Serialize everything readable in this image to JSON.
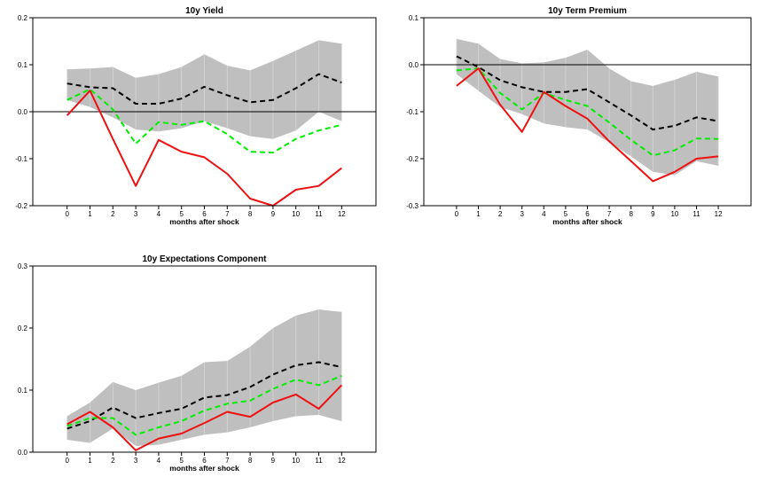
{
  "chart_data": [
    {
      "type": "line",
      "title": "10y Yield",
      "xlabel": "months after shock",
      "ylabel": "",
      "x": [
        0,
        1,
        2,
        3,
        4,
        5,
        6,
        7,
        8,
        9,
        10,
        11,
        12
      ],
      "xlim": [
        -1.5,
        13.5
      ],
      "ylim": [
        -0.2,
        0.2
      ],
      "yticks": [
        -0.2,
        -0.1,
        0.0,
        0.1,
        0.2
      ],
      "ytick_labels": [
        "-0.2",
        "-0.1",
        "0.0",
        "0.1",
        "0.2"
      ],
      "zero_line": true,
      "band": {
        "upper": [
          0.09,
          0.092,
          0.095,
          0.072,
          0.08,
          0.095,
          0.122,
          0.098,
          0.088,
          0.108,
          0.13,
          0.152,
          0.145
        ],
        "lower": [
          0.025,
          0.01,
          -0.012,
          -0.038,
          -0.042,
          -0.035,
          -0.02,
          -0.035,
          -0.052,
          -0.058,
          -0.04,
          0.0,
          -0.02
        ],
        "color": "#bfbfbf"
      },
      "series": [
        {
          "values": [
            0.06,
            0.052,
            0.05,
            0.017,
            0.017,
            0.028,
            0.053,
            0.035,
            0.02,
            0.025,
            0.05,
            0.08,
            0.062
          ],
          "color": "#000000",
          "style": "dashed"
        },
        {
          "values": [
            0.025,
            0.048,
            0.005,
            -0.068,
            -0.022,
            -0.028,
            -0.02,
            -0.048,
            -0.085,
            -0.087,
            -0.058,
            -0.04,
            -0.028
          ],
          "color": "#00ee00",
          "style": "dashed"
        },
        {
          "values": [
            -0.008,
            0.045,
            -0.058,
            -0.158,
            -0.06,
            -0.085,
            -0.097,
            -0.132,
            -0.185,
            -0.2,
            -0.166,
            -0.158,
            -0.12
          ],
          "color": "#ee1111",
          "style": "solid"
        }
      ]
    },
    {
      "type": "line",
      "title": "10y Term Premium",
      "xlabel": "months after shock",
      "ylabel": "",
      "x": [
        0,
        1,
        2,
        3,
        4,
        5,
        6,
        7,
        8,
        9,
        10,
        11,
        12
      ],
      "xlim": [
        -1.5,
        13.5
      ],
      "ylim": [
        -0.3,
        0.1
      ],
      "yticks": [
        -0.3,
        -0.2,
        -0.1,
        0.0,
        0.1
      ],
      "ytick_labels": [
        "-0.3",
        "-0.2",
        "-0.1",
        "0.0",
        "0.1"
      ],
      "zero_line": true,
      "band": {
        "upper": [
          0.055,
          0.045,
          0.012,
          0.003,
          0.005,
          0.015,
          0.032,
          -0.008,
          -0.035,
          -0.045,
          -0.032,
          -0.015,
          -0.025
        ],
        "lower": [
          -0.02,
          -0.055,
          -0.09,
          -0.105,
          -0.125,
          -0.133,
          -0.138,
          -0.165,
          -0.195,
          -0.228,
          -0.235,
          -0.205,
          -0.215
        ],
        "color": "#bfbfbf"
      },
      "series": [
        {
          "values": [
            0.018,
            -0.005,
            -0.033,
            -0.048,
            -0.058,
            -0.058,
            -0.052,
            -0.08,
            -0.108,
            -0.138,
            -0.13,
            -0.112,
            -0.12
          ],
          "color": "#000000",
          "style": "dashed"
        },
        {
          "values": [
            -0.012,
            -0.008,
            -0.06,
            -0.095,
            -0.06,
            -0.075,
            -0.088,
            -0.123,
            -0.16,
            -0.193,
            -0.182,
            -0.157,
            -0.158
          ],
          "color": "#00ee00",
          "style": "dashed"
        },
        {
          "values": [
            -0.045,
            -0.008,
            -0.085,
            -0.143,
            -0.058,
            -0.088,
            -0.115,
            -0.163,
            -0.205,
            -0.248,
            -0.228,
            -0.2,
            -0.195
          ],
          "color": "#ee1111",
          "style": "solid"
        }
      ]
    },
    {
      "type": "line",
      "title": "10y Expectations Component",
      "xlabel": "months after shock",
      "ylabel": "",
      "x": [
        0,
        1,
        2,
        3,
        4,
        5,
        6,
        7,
        8,
        9,
        10,
        11,
        12
      ],
      "xlim": [
        -1.5,
        13.5
      ],
      "ylim": [
        0.0,
        0.3
      ],
      "yticks": [
        0.0,
        0.1,
        0.2,
        0.3
      ],
      "ytick_labels": [
        "0.0",
        "0.1",
        "0.2",
        "0.3"
      ],
      "zero_line": false,
      "band": {
        "upper": [
          0.058,
          0.08,
          0.113,
          0.1,
          0.112,
          0.123,
          0.145,
          0.147,
          0.17,
          0.2,
          0.22,
          0.23,
          0.226
        ],
        "lower": [
          0.02,
          0.015,
          0.038,
          0.01,
          0.012,
          0.02,
          0.028,
          0.032,
          0.04,
          0.05,
          0.058,
          0.06,
          0.05
        ],
        "color": "#bfbfbf"
      },
      "series": [
        {
          "values": [
            0.038,
            0.05,
            0.072,
            0.055,
            0.063,
            0.07,
            0.088,
            0.092,
            0.105,
            0.125,
            0.14,
            0.145,
            0.137
          ],
          "color": "#000000",
          "style": "dashed"
        },
        {
          "values": [
            0.042,
            0.055,
            0.055,
            0.028,
            0.04,
            0.05,
            0.067,
            0.078,
            0.083,
            0.102,
            0.117,
            0.108,
            0.123
          ],
          "color": "#00ee00",
          "style": "dashed"
        },
        {
          "values": [
            0.045,
            0.065,
            0.04,
            0.003,
            0.022,
            0.03,
            0.047,
            0.065,
            0.057,
            0.08,
            0.093,
            0.07,
            0.108
          ],
          "color": "#ee1111",
          "style": "solid"
        }
      ]
    }
  ]
}
